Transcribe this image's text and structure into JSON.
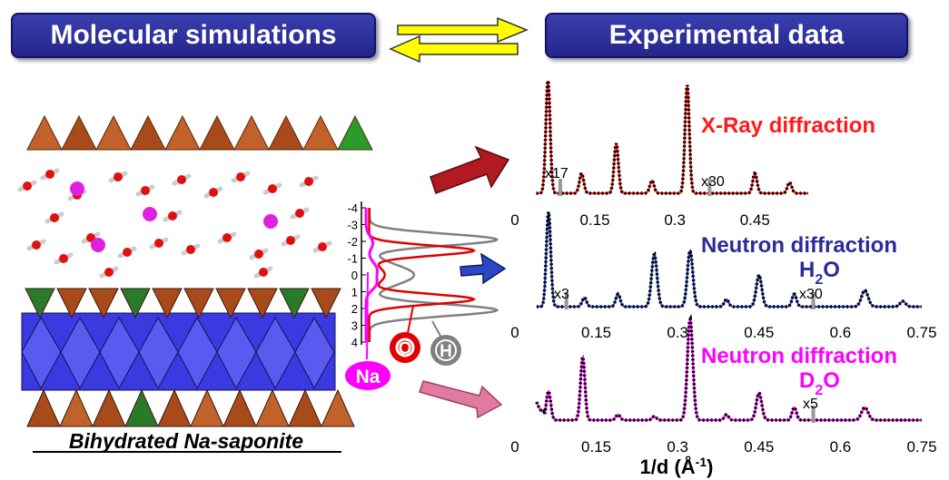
{
  "headers": {
    "left": "Molecular simulations",
    "right": "Experimental data"
  },
  "structure": {
    "caption": "Bihydrated Na-saponite"
  },
  "density_profile": {
    "ticks": [
      "-4",
      "-3",
      "-2",
      "-1",
      "0",
      "1",
      "2",
      "3",
      "4"
    ],
    "species": [
      "Na",
      "O",
      "H"
    ],
    "colors": {
      "Na": "#ff00ff",
      "O": "#e00000",
      "H": "#808080"
    }
  },
  "panels": [
    {
      "title": "X-Ray diffraction",
      "title_color": "#ff1a1a",
      "subtitle": "",
      "subtitle_sub": "",
      "scale_labels": [
        "x17",
        "x30"
      ],
      "x_ticks": [
        "0",
        "0.15",
        "0.3",
        "0.45"
      ],
      "xlim": [
        0,
        0.55
      ]
    },
    {
      "title": "Neutron diffraction",
      "title_color": "#2b2b9a",
      "subtitle": "H",
      "subtitle_sub": "2",
      "subtitle_tail": "O",
      "scale_labels": [
        "x3",
        "x30"
      ],
      "x_ticks": [
        "0",
        "0.15",
        "0.3",
        "0.45",
        "0.6",
        "0.75"
      ],
      "xlim": [
        0,
        0.75
      ]
    },
    {
      "title": "Neutron diffraction",
      "title_color": "#ff00ff",
      "subtitle": "D",
      "subtitle_sub": "2",
      "subtitle_tail": "O",
      "scale_labels": [
        "x5"
      ],
      "x_ticks": [
        "0",
        "0.15",
        "0.3",
        "0.45",
        "0.6",
        "0.75"
      ],
      "xlim": [
        0,
        0.75
      ]
    }
  ],
  "x_axis_label": "1/d (Å",
  "x_axis_label_sup": "-1",
  "x_axis_label_tail": ")",
  "colors": {
    "header_bg": "#2a2e9e",
    "arrow_fill": "#ffff00",
    "xray_arrow": "#b01a20",
    "h2o_arrow": "#2a48c8",
    "d2o_arrow": "#e07aa0"
  }
}
